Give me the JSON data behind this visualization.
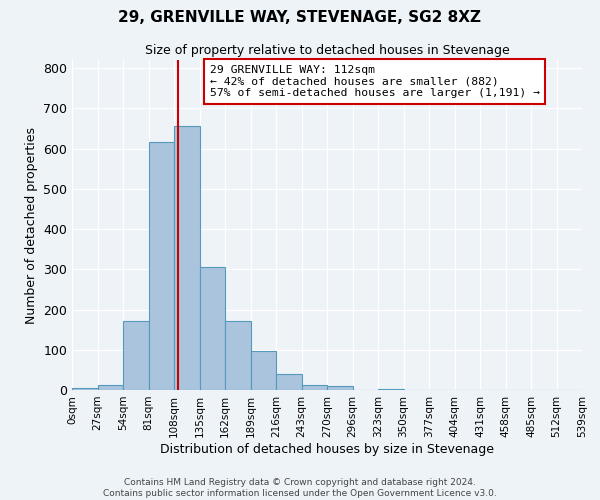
{
  "title": "29, GRENVILLE WAY, STEVENAGE, SG2 8XZ",
  "subtitle": "Size of property relative to detached houses in Stevenage",
  "xlabel": "Distribution of detached houses by size in Stevenage",
  "ylabel": "Number of detached properties",
  "bin_edges": [
    0,
    27,
    54,
    81,
    108,
    135,
    162,
    189,
    216,
    243,
    270,
    297,
    324,
    351,
    378,
    405,
    432,
    459,
    486,
    513,
    540
  ],
  "bar_heights": [
    5,
    12,
    172,
    617,
    655,
    305,
    172,
    97,
    40,
    12,
    10,
    0,
    2,
    0,
    0,
    0,
    0,
    0,
    0,
    0
  ],
  "tick_labels": [
    "0sqm",
    "27sqm",
    "54sqm",
    "81sqm",
    "108sqm",
    "135sqm",
    "162sqm",
    "189sqm",
    "216sqm",
    "243sqm",
    "270sqm",
    "296sqm",
    "323sqm",
    "350sqm",
    "377sqm",
    "404sqm",
    "431sqm",
    "458sqm",
    "485sqm",
    "512sqm",
    "539sqm"
  ],
  "property_size": 112,
  "vline_color": "#cc0000",
  "bar_facecolor": "#aac4dd",
  "bar_edgecolor": "#5599bb",
  "annotation_text": "29 GRENVILLE WAY: 112sqm\n← 42% of detached houses are smaller (882)\n57% of semi-detached houses are larger (1,191) →",
  "annotation_box_edgecolor": "#cc0000",
  "annotation_box_facecolor": "#ffffff",
  "ylim": [
    0,
    820
  ],
  "bg_color": "#eef3f8",
  "footer_line1": "Contains HM Land Registry data © Crown copyright and database right 2024.",
  "footer_line2": "Contains public sector information licensed under the Open Government Licence v3.0."
}
